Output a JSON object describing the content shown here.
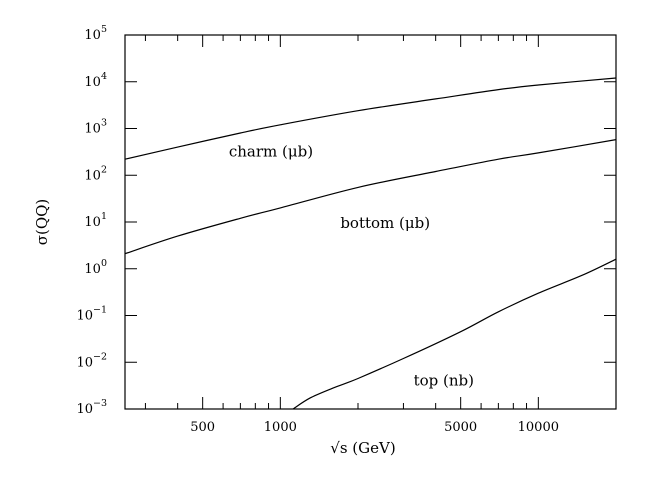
{
  "chart_data": {
    "type": "line",
    "title": "",
    "xlabel": "√s (GeV)",
    "ylabel": "σ(QQ)",
    "xscale": "log",
    "yscale": "log",
    "xlim": [
      250,
      20000
    ],
    "ylim": [
      0.001,
      100000
    ],
    "grid": false,
    "x_tick_labels": [
      {
        "value": 500,
        "label": "500"
      },
      {
        "value": 1000,
        "label": "1000"
      },
      {
        "value": 5000,
        "label": "5000"
      },
      {
        "value": 10000,
        "label": "10000"
      }
    ],
    "y_tick_labels": [
      {
        "value": 100000,
        "base": "10",
        "exp": "5"
      },
      {
        "value": 10000,
        "base": "10",
        "exp": "4"
      },
      {
        "value": 1000,
        "base": "10",
        "exp": "3"
      },
      {
        "value": 100,
        "base": "10",
        "exp": "2"
      },
      {
        "value": 10,
        "base": "10",
        "exp": "1"
      },
      {
        "value": 1,
        "base": "10",
        "exp": "0"
      },
      {
        "value": 0.1,
        "base": "10",
        "exp": "−1"
      },
      {
        "value": 0.01,
        "base": "10",
        "exp": "−2"
      },
      {
        "value": 0.001,
        "base": "10",
        "exp": "−3"
      }
    ],
    "series": [
      {
        "name": "charm (μb)",
        "x": [
          250,
          400,
          700,
          1000,
          2000,
          4000,
          7000,
          10000,
          20000
        ],
        "y": [
          220,
          400,
          800,
          1200,
          2400,
          4300,
          6800,
          8500,
          12000
        ]
      },
      {
        "name": "bottom (μb)",
        "x": [
          250,
          400,
          700,
          1000,
          2000,
          4000,
          7000,
          10000,
          20000
        ],
        "y": [
          2.1,
          5.0,
          12,
          20,
          55,
          120,
          220,
          300,
          580
        ]
      },
      {
        "name": "top (nb)",
        "x": [
          1120,
          1300,
          1600,
          2000,
          3000,
          5000,
          7000,
          10000,
          15000,
          20000
        ],
        "y": [
          0.001,
          0.0017,
          0.0028,
          0.0045,
          0.012,
          0.045,
          0.12,
          0.3,
          0.75,
          1.6
        ]
      }
    ],
    "annotations": [
      {
        "text": "charm (μb)",
        "series": 0
      },
      {
        "text": "bottom (μb)",
        "series": 1
      },
      {
        "text": "top (nb)",
        "series": 2
      }
    ]
  }
}
